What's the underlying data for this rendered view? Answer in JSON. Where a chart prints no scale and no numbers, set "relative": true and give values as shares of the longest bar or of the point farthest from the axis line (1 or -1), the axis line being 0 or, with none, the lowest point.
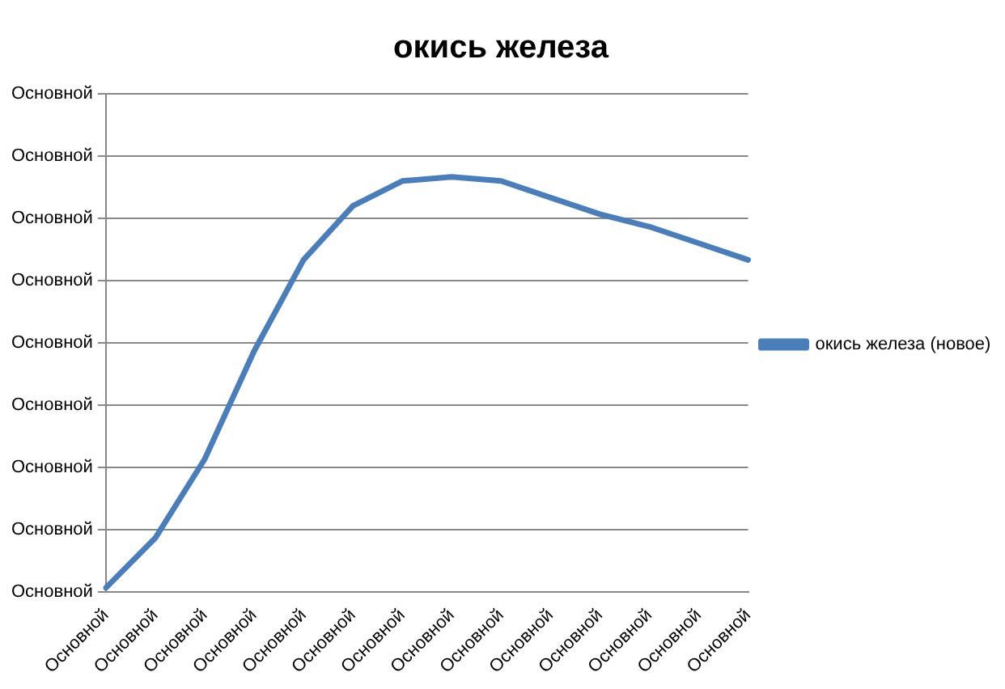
{
  "chart_data": {
    "type": "line",
    "title": "окись железа",
    "categories": [
      "Основной",
      "Основной",
      "Основной",
      "Основной",
      "Основной",
      "Основной",
      "Основной",
      "Основной",
      "Основной",
      "Основной",
      "Основной",
      "Основной",
      "Основной",
      "Основной"
    ],
    "series": [
      {
        "name": "окись железа (новое)",
        "color": "#4a7ebb",
        "values": [
          0.01,
          0.13,
          0.32,
          0.58,
          0.8,
          0.93,
          0.99,
          1,
          0.99,
          0.95,
          0.91,
          0.88,
          0.84,
          0.8
        ]
      }
    ],
    "relative": true,
    "annotations": [
      "Основной",
      "Основной",
      "Основной",
      "Основной",
      "Основной",
      "Основной",
      "Основной",
      "Основной",
      "Основной"
    ],
    "grid": "y",
    "legend": "right",
    "marker": "none",
    "line_style": "solid"
  }
}
